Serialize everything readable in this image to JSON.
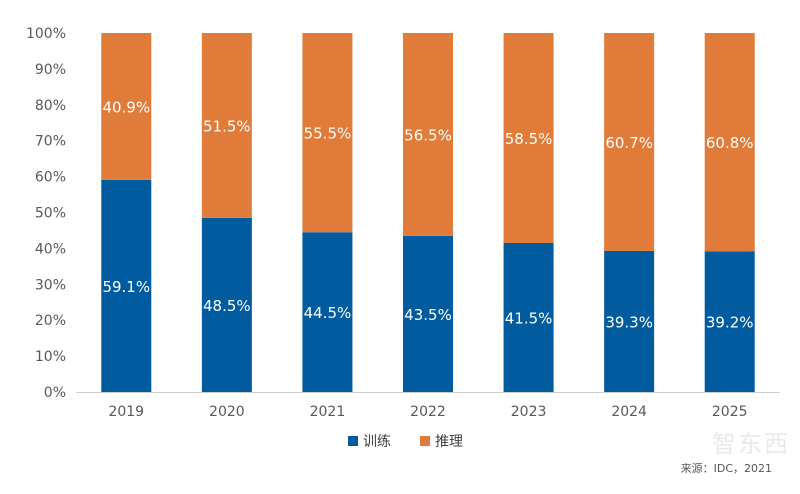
{
  "chart_data": {
    "type": "bar",
    "stacked": true,
    "categories": [
      "2019",
      "2020",
      "2021",
      "2022",
      "2023",
      "2024",
      "2025"
    ],
    "series": [
      {
        "name": "训练",
        "color": "#005b9f",
        "values": [
          59.1,
          48.5,
          44.5,
          43.5,
          41.5,
          39.3,
          39.2
        ],
        "labels": [
          "59.1%",
          "48.5%",
          "44.5%",
          "43.5%",
          "41.5%",
          "39.3%",
          "39.2%"
        ]
      },
      {
        "name": "推理",
        "color": "#e07b39",
        "values": [
          40.9,
          51.5,
          55.5,
          56.5,
          58.5,
          60.7,
          60.8
        ],
        "labels": [
          "40.9%",
          "51.5%",
          "55.5%",
          "56.5%",
          "58.5%",
          "60.7%",
          "60.8%"
        ]
      }
    ],
    "yticks": [
      "0%",
      "10%",
      "20%",
      "30%",
      "40%",
      "50%",
      "60%",
      "70%",
      "80%",
      "90%",
      "100%"
    ],
    "ylim": [
      0,
      100
    ],
    "title": "",
    "xlabel": "",
    "ylabel": "",
    "grid": false,
    "legend_position": "bottom"
  },
  "source": "来源：IDC，2021",
  "watermark": "智东西"
}
